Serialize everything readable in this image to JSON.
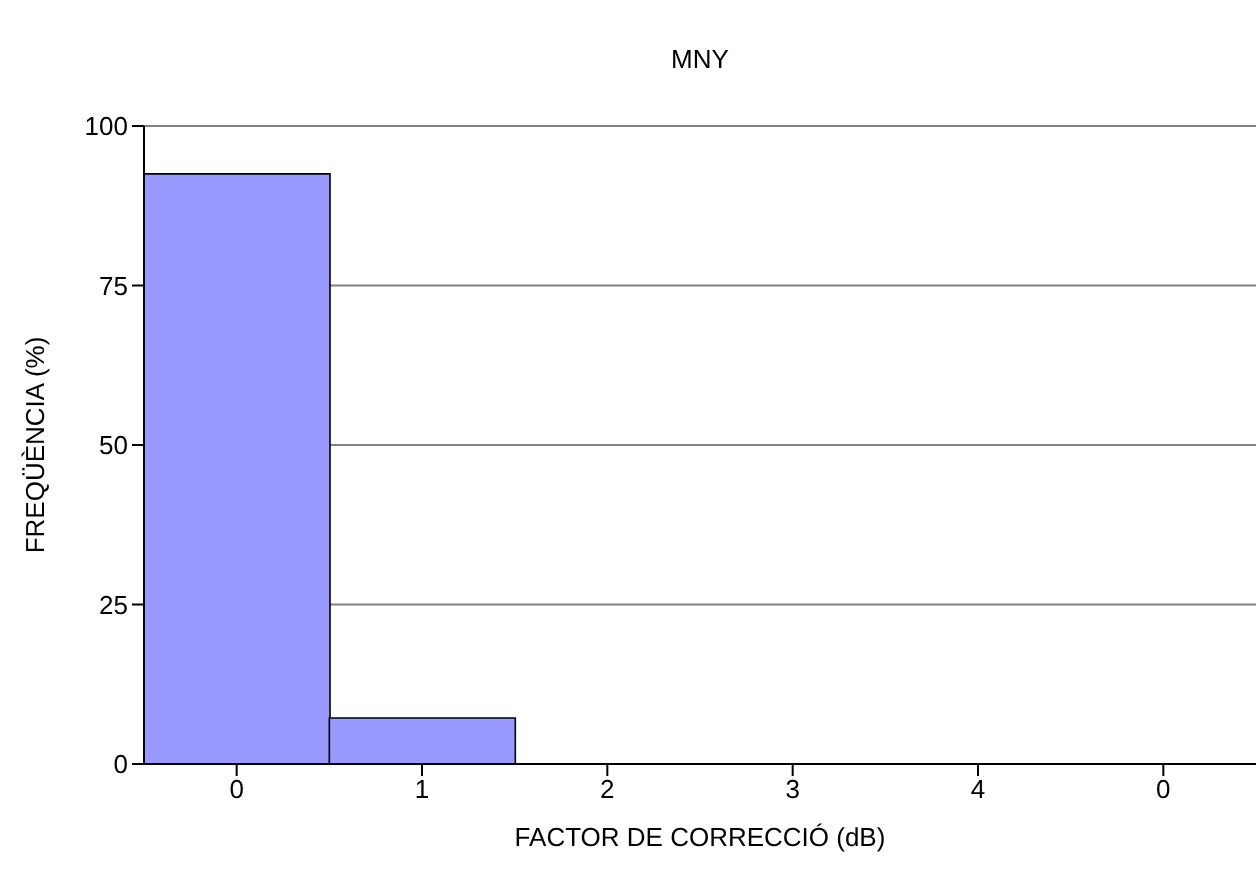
{
  "chart_data": {
    "type": "bar",
    "title": "MNY",
    "xlabel": "FACTOR DE CORRECCIÓ (dB)",
    "ylabel": "FREQÜÈNCIA (%)",
    "categories": [
      "0",
      "1",
      "2",
      "3",
      "4",
      "0"
    ],
    "values": [
      92.5,
      7.2,
      0,
      0,
      0,
      0
    ],
    "color": "#9999ff",
    "ylim": [
      0,
      100
    ],
    "yticks": [
      0,
      25,
      50,
      75,
      100
    ],
    "grid": "y"
  }
}
